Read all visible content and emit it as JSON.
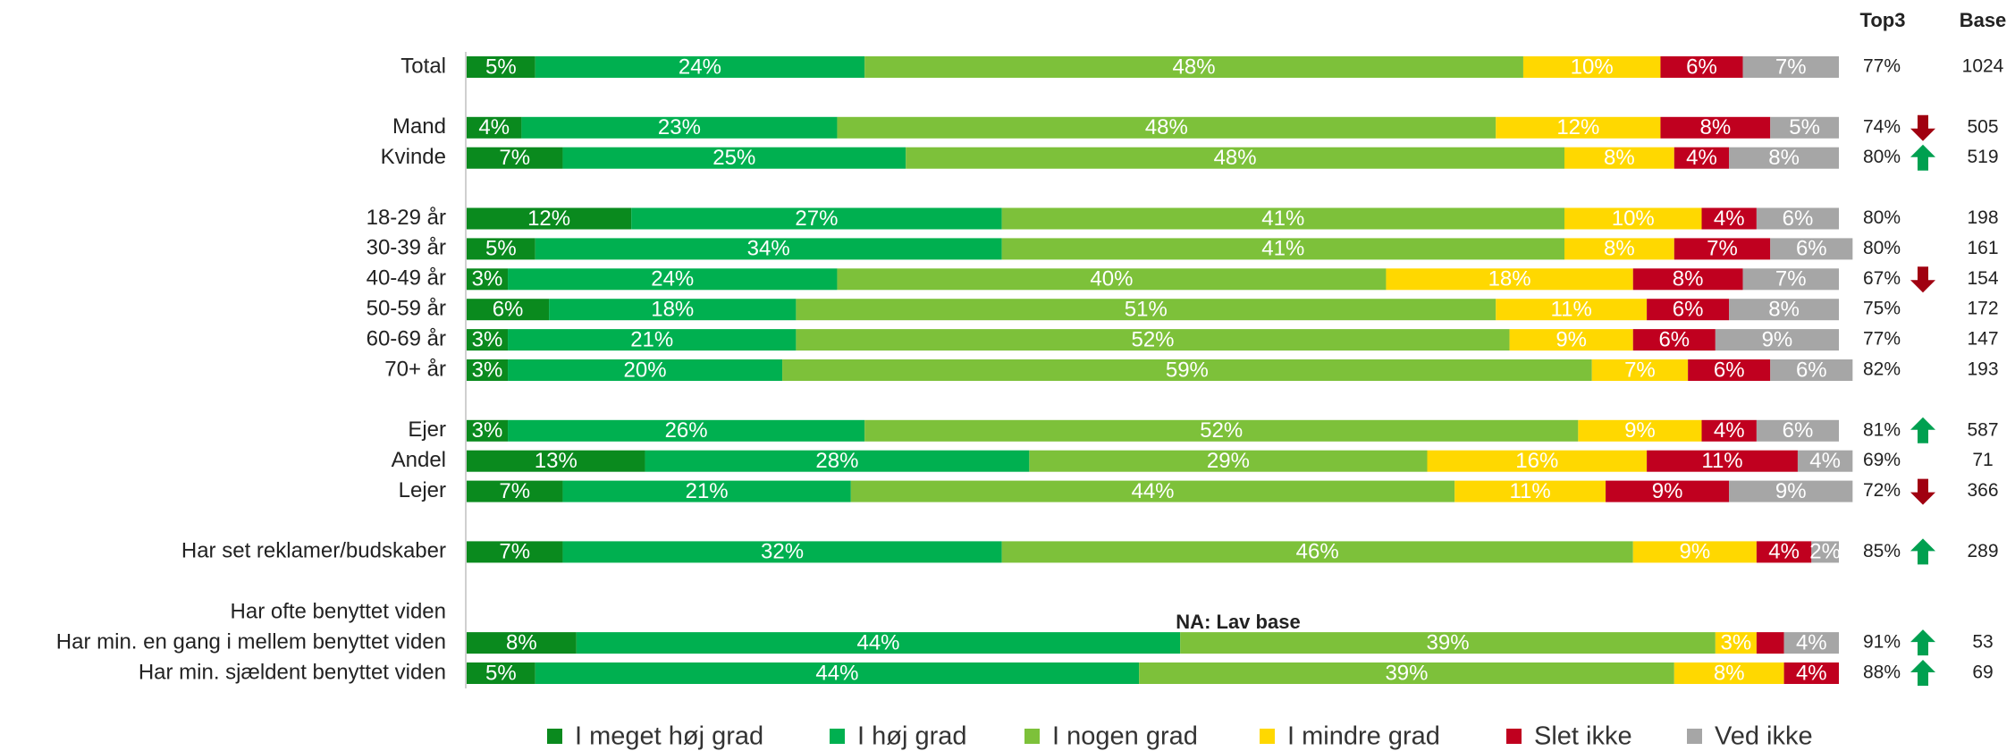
{
  "chart_data": {
    "type": "stacked_bar",
    "categories": [
      "Total",
      "Mand",
      "Kvinde",
      "18-29 år",
      "30-39 år",
      "40-49 år",
      "50-59 år",
      "60-69 år",
      "70+ år",
      "Ejer",
      "Andel",
      "Lejer",
      "Har set reklamer/budskaber",
      "Har ofte benyttet viden",
      "Har min. en gang i mellem benyttet viden",
      "Har min. sjældent benyttet viden"
    ],
    "xlim": [
      0,
      100
    ],
    "series": [
      {
        "name": "I meget høj grad",
        "color": "#0a8a1e",
        "values": [
          5,
          4,
          7,
          12,
          5,
          3,
          6,
          3,
          3,
          3,
          13,
          7,
          7,
          null,
          8,
          5
        ],
        "value_labels": [
          "5%",
          "4%",
          "7%",
          "12%",
          "5%",
          "3%",
          "6%",
          "3%",
          "3%",
          "3%",
          "13%",
          "7%",
          "7%",
          null,
          "8%",
          "5%"
        ]
      },
      {
        "name": "I høj grad",
        "color": "#00b050",
        "values": [
          24,
          23,
          25,
          27,
          34,
          24,
          18,
          21,
          20,
          26,
          28,
          21,
          32,
          null,
          44,
          44
        ],
        "value_labels": [
          "24%",
          "23%",
          "25%",
          "27%",
          "34%",
          "24%",
          "18%",
          "21%",
          "20%",
          "26%",
          "28%",
          "21%",
          "32%",
          null,
          "44%",
          "44%"
        ]
      },
      {
        "name": "I nogen grad",
        "color": "#7dc13a",
        "values": [
          48,
          48,
          48,
          41,
          41,
          40,
          51,
          52,
          59,
          52,
          29,
          44,
          46,
          null,
          39,
          39
        ],
        "value_labels": [
          "48%",
          "48%",
          "48%",
          "41%",
          "41%",
          "40%",
          "51%",
          "52%",
          "59%",
          "52%",
          "29%",
          "44%",
          "46%",
          null,
          "39%",
          "39%"
        ]
      },
      {
        "name": "I mindre grad",
        "color": "#ffd800",
        "values": [
          10,
          12,
          8,
          10,
          8,
          18,
          11,
          9,
          7,
          9,
          16,
          11,
          9,
          null,
          3,
          8
        ],
        "value_labels": [
          "10%",
          "12%",
          "8%",
          "10%",
          "8%",
          "18%",
          "11%",
          "9%",
          "7%",
          "9%",
          "16%",
          "11%",
          "9%",
          null,
          "3%",
          "8%"
        ]
      },
      {
        "name": "Slet ikke",
        "color": "#c0001f",
        "values": [
          6,
          8,
          4,
          4,
          7,
          8,
          6,
          6,
          6,
          4,
          11,
          9,
          4,
          null,
          2,
          4
        ],
        "value_labels": [
          "6%",
          "8%",
          "4%",
          "4%",
          "7%",
          "8%",
          "6%",
          "6%",
          "6%",
          "4%",
          "11%",
          "9%",
          "4%",
          null,
          null,
          "4%"
        ]
      },
      {
        "name": "Ved ikke",
        "color": "#a6a6a6",
        "values": [
          7,
          5,
          8,
          6,
          6,
          7,
          8,
          9,
          6,
          6,
          4,
          9,
          2,
          null,
          4,
          null
        ],
        "value_labels": [
          "7%",
          "5%",
          "8%",
          "6%",
          "6%",
          "7%",
          "8%",
          "9%",
          "6%",
          "6%",
          "4%",
          "9%",
          "2%",
          null,
          "4%",
          null
        ]
      }
    ],
    "top3_header": "Top3",
    "base_header": "Base",
    "top3": [
      77,
      74,
      80,
      80,
      80,
      67,
      75,
      77,
      82,
      81,
      69,
      72,
      85,
      null,
      91,
      88
    ],
    "top3_labels": [
      "77%",
      "74%",
      "80%",
      "80%",
      "80%",
      "67%",
      "75%",
      "77%",
      "82%",
      "81%",
      "69%",
      "72%",
      "85%",
      null,
      "91%",
      "88%"
    ],
    "base": [
      1024,
      505,
      519,
      198,
      161,
      154,
      172,
      147,
      193,
      587,
      71,
      366,
      289,
      null,
      53,
      69
    ],
    "arrows": [
      null,
      "down",
      "up",
      null,
      null,
      "down",
      null,
      null,
      null,
      "up",
      null,
      "down",
      "up",
      null,
      "up",
      "up"
    ],
    "annotation": "NA: Lav base"
  }
}
